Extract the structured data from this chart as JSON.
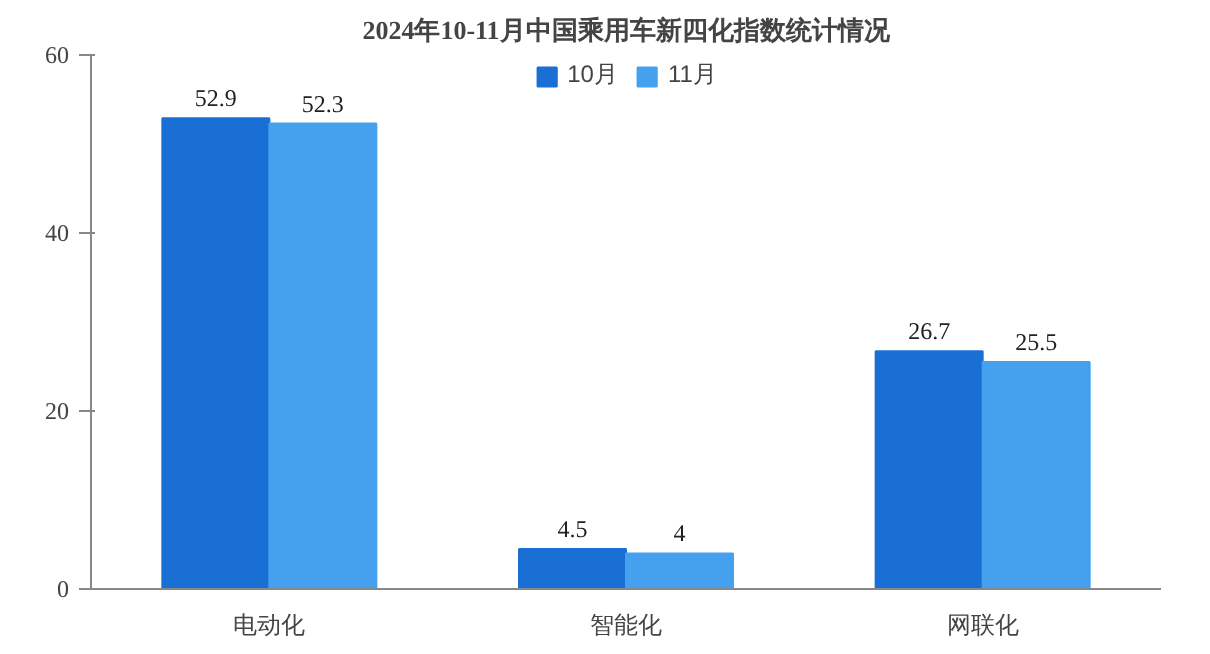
{
  "chart_data": {
    "type": "bar",
    "title": "2024年10-11月中国乘用车新四化指数统计情况",
    "categories": [
      "电动化",
      "智能化",
      "网联化"
    ],
    "series": [
      {
        "name": "10月",
        "color": "#1a6fd4",
        "values": [
          52.9,
          4.5,
          26.7
        ]
      },
      {
        "name": "11月",
        "color": "#45a1ee",
        "values": [
          52.3,
          4,
          25.5
        ]
      }
    ],
    "ylim": [
      0,
      60
    ],
    "yticks": [
      0,
      20,
      40,
      60
    ],
    "grid": false,
    "legend": "top",
    "data_labels": true
  }
}
